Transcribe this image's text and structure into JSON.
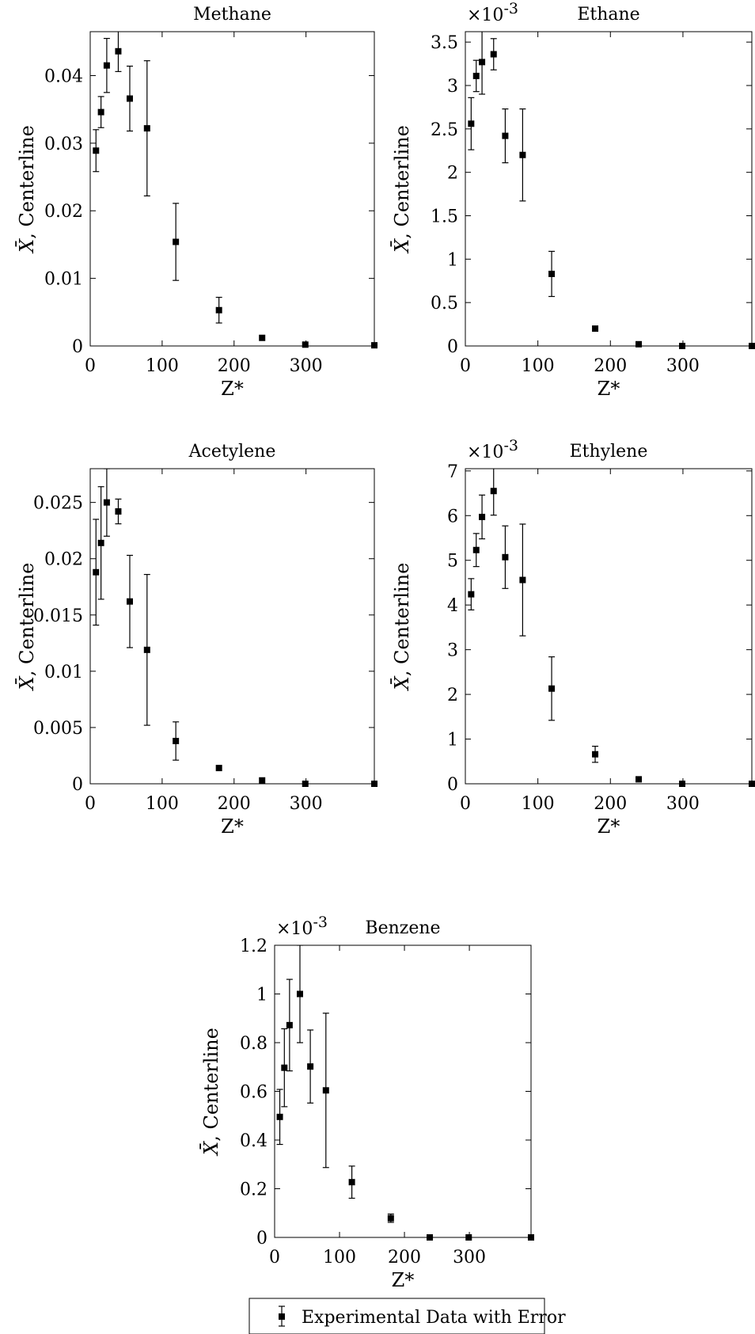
{
  "chart_data": [
    {
      "type": "scatter",
      "title": "Methane",
      "xlabel": "Z*",
      "ylabel_sym": "X̄",
      "ylabel": ", Centerline",
      "multiplier_label": "",
      "multiplier_exp": "",
      "xlim": [
        0,
        395
      ],
      "ylim": [
        0,
        0.0465
      ],
      "xticks": [
        0,
        100,
        200,
        300
      ],
      "xtick_labels": [
        "0",
        "100",
        "200",
        "300"
      ],
      "yticks": [
        0,
        0.01,
        0.02,
        0.03,
        0.04
      ],
      "ytick_labels": [
        "0",
        "0.01",
        "0.02",
        "0.03",
        "0.04"
      ],
      "series": [
        {
          "x": [
            8,
            15,
            23,
            39,
            55,
            79,
            119,
            179,
            239,
            299,
            395
          ],
          "y": [
            0.0289,
            0.0346,
            0.0415,
            0.0436,
            0.0366,
            0.0322,
            0.0154,
            0.0053,
            0.0012,
            0.0002,
            0.0001
          ],
          "err": [
            0.0031,
            0.0023,
            0.004,
            0.003,
            0.0048,
            0.01,
            0.0057,
            0.0019,
            0.0,
            0.0,
            0.0
          ]
        }
      ]
    },
    {
      "type": "scatter",
      "title": "Ethane",
      "xlabel": "Z*",
      "ylabel_sym": "X̄",
      "ylabel": ", Centerline",
      "multiplier_label": "×10",
      "multiplier_exp": "-3",
      "xlim": [
        0,
        395
      ],
      "ylim": [
        0,
        3.62
      ],
      "xticks": [
        0,
        100,
        200,
        300
      ],
      "xtick_labels": [
        "0",
        "100",
        "200",
        "300"
      ],
      "yticks": [
        0,
        0.5,
        1,
        1.5,
        2,
        2.5,
        3,
        3.5
      ],
      "ytick_labels": [
        "0",
        "0.5",
        "1",
        "1.5",
        "2",
        "2.5",
        "3",
        "3.5"
      ],
      "series": [
        {
          "x": [
            8,
            15,
            23,
            39,
            55,
            79,
            119,
            179,
            239,
            299,
            395
          ],
          "y": [
            2.56,
            3.11,
            3.27,
            3.36,
            2.42,
            2.2,
            0.83,
            0.2,
            0.02,
            0.0,
            0.0
          ],
          "err": [
            0.3,
            0.18,
            0.37,
            0.18,
            0.31,
            0.53,
            0.26,
            0.0,
            0.0,
            0.0,
            0.0
          ]
        }
      ]
    },
    {
      "type": "scatter",
      "title": "Acetylene",
      "xlabel": "Z*",
      "ylabel_sym": "X̄",
      "ylabel": ", Centerline",
      "multiplier_label": "",
      "multiplier_exp": "",
      "xlim": [
        0,
        395
      ],
      "ylim": [
        0,
        0.028
      ],
      "xticks": [
        0,
        100,
        200,
        300
      ],
      "xtick_labels": [
        "0",
        "100",
        "200",
        "300"
      ],
      "yticks": [
        0,
        0.005,
        0.01,
        0.015,
        0.02,
        0.025
      ],
      "ytick_labels": [
        "0",
        "0.005",
        "0.01",
        "0.015",
        "0.02",
        "0.025"
      ],
      "series": [
        {
          "x": [
            8,
            15,
            23,
            39,
            55,
            79,
            119,
            179,
            239,
            299,
            395
          ],
          "y": [
            0.0188,
            0.0214,
            0.025,
            0.0242,
            0.0162,
            0.0119,
            0.0038,
            0.0014,
            0.0003,
            0.0,
            0.0
          ],
          "err": [
            0.0047,
            0.005,
            0.003,
            0.0011,
            0.0041,
            0.0067,
            0.0017,
            0.0,
            0.0,
            0.0,
            0.0
          ]
        }
      ]
    },
    {
      "type": "scatter",
      "title": "Ethylene",
      "xlabel": "Z*",
      "ylabel_sym": "X̄",
      "ylabel": ", Centerline",
      "multiplier_label": "×10",
      "multiplier_exp": "-3",
      "xlim": [
        0,
        395
      ],
      "ylim": [
        0,
        7.05
      ],
      "xticks": [
        0,
        100,
        200,
        300
      ],
      "xtick_labels": [
        "0",
        "100",
        "200",
        "300"
      ],
      "yticks": [
        0,
        1,
        2,
        3,
        4,
        5,
        6,
        7
      ],
      "ytick_labels": [
        "0",
        "1",
        "2",
        "3",
        "4",
        "5",
        "6",
        "7"
      ],
      "series": [
        {
          "x": [
            8,
            15,
            23,
            39,
            55,
            79,
            119,
            179,
            239,
            299,
            395
          ],
          "y": [
            4.24,
            5.23,
            5.97,
            6.55,
            5.07,
            4.56,
            2.13,
            0.66,
            0.1,
            0.0,
            0.0
          ],
          "err": [
            0.35,
            0.37,
            0.49,
            0.54,
            0.7,
            1.25,
            0.71,
            0.18,
            0.0,
            0.0,
            0.0
          ]
        }
      ]
    },
    {
      "type": "scatter",
      "title": "Benzene",
      "xlabel": "Z*",
      "ylabel_sym": "X̄",
      "ylabel": ", Centerline",
      "multiplier_label": "×10",
      "multiplier_exp": "-3",
      "xlim": [
        0,
        395
      ],
      "ylim": [
        0,
        1.2
      ],
      "xticks": [
        0,
        100,
        200,
        300
      ],
      "xtick_labels": [
        "0",
        "100",
        "200",
        "300"
      ],
      "yticks": [
        0,
        0.2,
        0.4,
        0.6,
        0.8,
        1,
        1.2
      ],
      "ytick_labels": [
        "0",
        "0.2",
        "0.4",
        "0.6",
        "0.8",
        "1",
        "1.2"
      ],
      "series": [
        {
          "x": [
            8,
            15,
            23,
            39,
            55,
            79,
            119,
            179,
            239,
            299,
            395
          ],
          "y": [
            0.495,
            0.697,
            0.872,
            1.0,
            0.702,
            0.604,
            0.227,
            0.079,
            0.0,
            0.0,
            0.0
          ],
          "err": [
            0.113,
            0.16,
            0.188,
            0.2,
            0.15,
            0.317,
            0.066,
            0.017,
            0.0,
            0.0,
            0.0
          ]
        }
      ]
    }
  ],
  "legend": {
    "label": "Experimental Data with Error"
  }
}
